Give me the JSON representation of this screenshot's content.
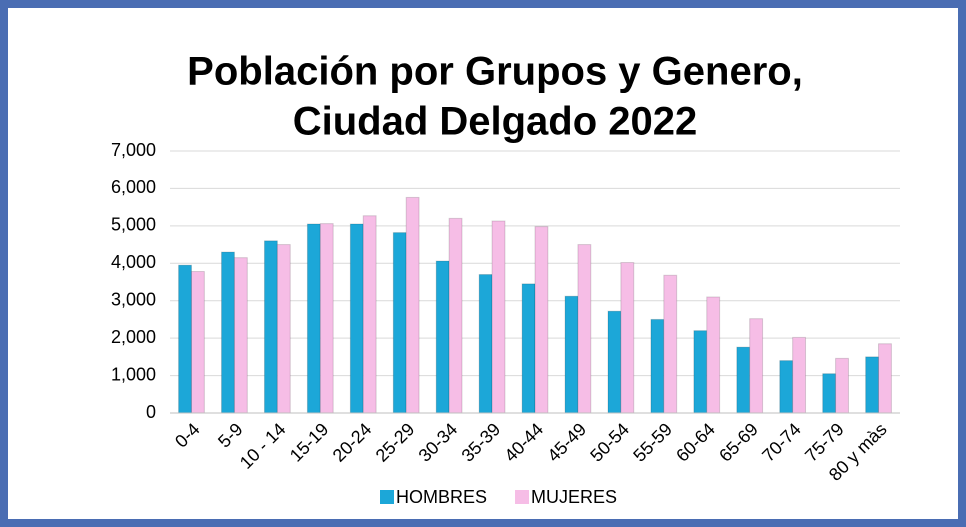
{
  "chart_data": {
    "type": "bar",
    "title": "Población por Grupos y Genero,",
    "subtitle": "Ciudad Delgado 2022",
    "categories": [
      "0-4",
      "5-9",
      "10 - 14",
      "15-19",
      "20-24",
      "25-29",
      "30-34",
      "35-39",
      "40-44",
      "45-49",
      "50-54",
      "55-59",
      "60-64",
      "65-69",
      "70-74",
      "75-79",
      "80 y màs"
    ],
    "series": [
      {
        "name": "HOMBRES",
        "color": "#1ca7d8",
        "values": [
          3950,
          4300,
          4600,
          5050,
          5050,
          4820,
          4060,
          3700,
          3450,
          3120,
          2720,
          2500,
          2200,
          1760,
          1400,
          1050,
          1500
        ]
      },
      {
        "name": "MUJERES",
        "color": "#f6bde6",
        "values": [
          3780,
          4150,
          4500,
          5060,
          5270,
          5760,
          5200,
          5130,
          4980,
          4500,
          4020,
          3680,
          3100,
          2520,
          2020,
          1460,
          1850
        ]
      }
    ],
    "ylim": [
      0,
      7000
    ],
    "yticks": [
      0,
      {
        "value": 1000,
        "label": "1,000"
      },
      {
        "value": 2000,
        "label": "2,000"
      },
      {
        "value": 3000,
        "label": "3,000"
      },
      {
        "value": 4000,
        "label": "4,000"
      },
      {
        "value": 5000,
        "label": "5,000"
      },
      {
        "value": 6000,
        "label": "6,000"
      },
      {
        "value": 7000,
        "label": "7,000"
      }
    ],
    "grid": true,
    "legend": "bottom"
  }
}
